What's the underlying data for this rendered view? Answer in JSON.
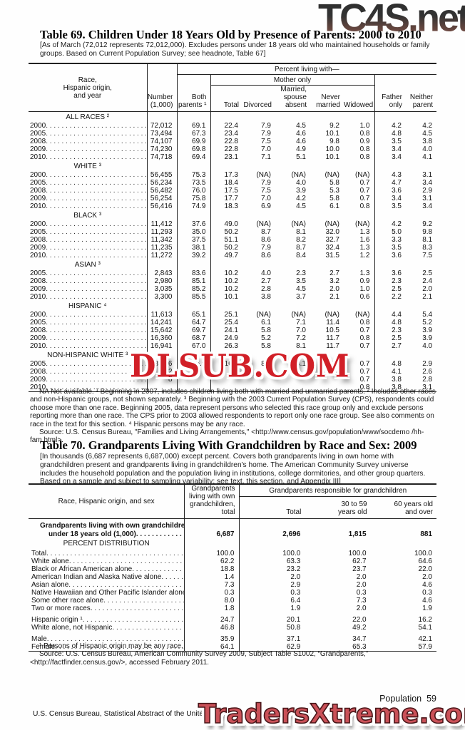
{
  "watermarks": {
    "top": "TC4S.net",
    "middle": "DLSUB.COM",
    "bottom": "TradersXtreme.com"
  },
  "table69": {
    "title": "Table 69. Children Under 18 Years Old by Presence of Parents: 2000 to 2010",
    "headnote": "[As of March (72,012 represents 72,012,000). Excludes persons under 18 years old who maintained households or family groups. Based on Current Population Survey; see headnote, Table 67]",
    "header": {
      "stub": "Race,\nHispanic origin,\nand year",
      "number": "Number\n(1,000)",
      "percent_living_with": "Percent living with—",
      "both_parents": "Both\nparents ¹",
      "mother_only": "Mother only",
      "mother_cols": [
        "Total",
        "Divorced",
        "Married,\nspouse\nabsent",
        "Never\nmarried",
        "Widowed"
      ],
      "father_only": "Father\nonly",
      "neither_parent": "Neither\nparent"
    },
    "sections": [
      {
        "label": "ALL RACES ²",
        "rows": [
          {
            "label": "2000",
            "values": [
              "72,012",
              "69.1",
              "22.4",
              "7.9",
              "4.5",
              "9.2",
              "1.0",
              "4.2",
              "4.2"
            ]
          },
          {
            "label": "2005",
            "values": [
              "73,494",
              "67.3",
              "23.4",
              "7.9",
              "4.6",
              "10.1",
              "0.8",
              "4.8",
              "4.5"
            ]
          },
          {
            "label": "2008",
            "values": [
              "74,107",
              "69.9",
              "22.8",
              "7.5",
              "4.6",
              "9.8",
              "0.9",
              "3.5",
              "3.8"
            ]
          },
          {
            "label": "2009",
            "values": [
              "74,230",
              "69.8",
              "22.8",
              "7.0",
              "4.9",
              "10.0",
              "0.8",
              "3.4",
              "4.0"
            ]
          },
          {
            "label": "2010",
            "values": [
              "74,718",
              "69.4",
              "23.1",
              "7.1",
              "5.1",
              "10.1",
              "0.8",
              "3.4",
              "4.1"
            ]
          }
        ]
      },
      {
        "label": "WHITE ³",
        "rows": [
          {
            "label": "2000",
            "values": [
              "56,455",
              "75.3",
              "17.3",
              "(NA)",
              "(NA)",
              "(NA)",
              "(NA)",
              "4.3",
              "3.1"
            ]
          },
          {
            "label": "2005",
            "values": [
              "56,234",
              "73.5",
              "18.4",
              "7.9",
              "4.0",
              "5.8",
              "0.7",
              "4.7",
              "3.4"
            ]
          },
          {
            "label": "2008",
            "values": [
              "56,482",
              "76.0",
              "17.5",
              "7.5",
              "3.9",
              "5.3",
              "0.7",
              "3.6",
              "2.9"
            ]
          },
          {
            "label": "2009",
            "values": [
              "56,254",
              "75.8",
              "17.7",
              "7.0",
              "4.2",
              "5.8",
              "0.7",
              "3.4",
              "3.1"
            ]
          },
          {
            "label": "2010",
            "values": [
              "56,416",
              "74.9",
              "18.3",
              "6.9",
              "4.5",
              "6.1",
              "0.8",
              "3.5",
              "3.4"
            ]
          }
        ]
      },
      {
        "label": "BLACK ³",
        "rows": [
          {
            "label": "2000",
            "values": [
              "11,412",
              "37.6",
              "49.0",
              "(NA)",
              "(NA)",
              "(NA)",
              "(NA)",
              "4.2",
              "9.2"
            ]
          },
          {
            "label": "2005",
            "values": [
              "11,293",
              "35.0",
              "50.2",
              "8.7",
              "8.1",
              "32.0",
              "1.3",
              "5.0",
              "9.8"
            ]
          },
          {
            "label": "2008",
            "values": [
              "11,342",
              "37.5",
              "51.1",
              "8.6",
              "8.2",
              "32.7",
              "1.6",
              "3.3",
              "8.1"
            ]
          },
          {
            "label": "2009",
            "values": [
              "11,235",
              "38.1",
              "50.2",
              "7.9",
              "8.7",
              "32.4",
              "1.3",
              "3.5",
              "8.3"
            ]
          },
          {
            "label": "2010",
            "values": [
              "11,272",
              "39.2",
              "49.7",
              "8.6",
              "8.4",
              "31.5",
              "1.2",
              "3.6",
              "7.5"
            ]
          }
        ]
      },
      {
        "label": "ASIAN ³",
        "rows": [
          {
            "label": "2005",
            "values": [
              "2,843",
              "83.6",
              "10.2",
              "4.0",
              "2.3",
              "2.7",
              "1.3",
              "3.6",
              "2.5"
            ]
          },
          {
            "label": "2008",
            "values": [
              "2,980",
              "85.1",
              "10.2",
              "2.7",
              "3.5",
              "3.2",
              "0.9",
              "2.3",
              "2.4"
            ]
          },
          {
            "label": "2009",
            "values": [
              "3,035",
              "85.2",
              "10.2",
              "2.8",
              "4.5",
              "2.0",
              "1.0",
              "2.5",
              "2.0"
            ]
          },
          {
            "label": "2010",
            "values": [
              "3,300",
              "85.5",
              "10.1",
              "3.8",
              "3.7",
              "2.1",
              "0.6",
              "2.2",
              "2.1"
            ]
          }
        ]
      },
      {
        "label": "HISPANIC ⁴",
        "rows": [
          {
            "label": "2000",
            "values": [
              "11,613",
              "65.1",
              "25.1",
              "(NA)",
              "(NA)",
              "(NA)",
              "(NA)",
              "4.4",
              "5.4"
            ]
          },
          {
            "label": "2005",
            "values": [
              "14,241",
              "64.7",
              "25.4",
              "6.1",
              "7.1",
              "11.4",
              "0.8",
              "4.8",
              "5.2"
            ]
          },
          {
            "label": "2008",
            "values": [
              "15,642",
              "69.7",
              "24.1",
              "5.8",
              "7.0",
              "10.5",
              "0.7",
              "2.3",
              "3.9"
            ]
          },
          {
            "label": "2009",
            "values": [
              "16,360",
              "68.7",
              "24.9",
              "5.2",
              "7.2",
              "11.7",
              "0.8",
              "2.5",
              "3.9"
            ]
          },
          {
            "label": "2010",
            "values": [
              "16,941",
              "67.0",
              "26.3",
              "5.8",
              "8.1",
              "11.7",
              "0.7",
              "2.7",
              "4.0"
            ]
          }
        ]
      },
      {
        "label": "NON-HISPANIC WHITE ³",
        "rows": [
          {
            "label": "2005",
            "values": [
              "43,106",
              "75.9",
              "16.4",
              "8.5",
              "3.1",
              "4.2",
              "0.7",
              "4.8",
              "2.9"
            ]
          },
          {
            "label": "2008",
            "values": [
              "2",
              "",
              "",
              "",
              "",
              "",
              "0.7",
              "4.1",
              "2.6"
            ]
          },
          {
            "label": "2009",
            "values": [
              "8",
              "",
              "",
              "",
              "",
              "",
              "0.7",
              "3.8",
              "2.8"
            ]
          },
          {
            "label": "2010",
            "values": [
              "",
              "",
              "",
              "",
              "",
              "",
              "0.8",
              "3.8",
              "3.1"
            ]
          }
        ]
      }
    ],
    "footnote": "NA Not available. ¹ Beginning in 2007, includes children living both with married and unmarried parents. ² Includes other races and non-Hispanic groups, not shown separately. ³ Beginning with the 2003 Current Population Survey (CPS), respondents could choose more than one race. Beginning 2005, data represent persons who selected this race group only and exclude persons reporting more than one race. The CPS prior to 2003 allowed respondents to report only one race group. See also comments on race in the text for this section. ⁴ Hispanic persons may be any race.",
    "source": "Source: U.S. Census Bureau, \"Families and Living Arrangements,\" <http://www.census.gov/population/www/socdemo /hh-fam.html>."
  },
  "table70": {
    "title": "Table 70. Grandparents Living With Grandchildren by Race and Sex: 2009",
    "headnote": "[In thousands (6,687 represents 6,687,000) except percent. Covers both grandparents living in own home with grandchildren present and grandparents living in grandchildren's home. The American Community Survey universe includes the household population and the population living in institutions, college dormitories, and other group quarters. Based on a sample and subject to sampling variability; see text, this section, and Appendix III]",
    "header": {
      "stub": "Race, Hispanic origin, and sex",
      "total_col": "Grandparents\nliving with own\ngrandchildren, total",
      "group": "Grandparents responsible for grandchildren",
      "cols": [
        "Total",
        "30 to 59\nyears old",
        "60 years old\nand over"
      ]
    },
    "rows": [
      {
        "type": "total",
        "label_lines": [
          "Grandparents living with own grandchildren",
          "under 18 years old (1,000)"
        ],
        "values": [
          "6,687",
          "2,696",
          "1,815",
          "881"
        ]
      },
      {
        "type": "section",
        "label": "PERCENT DISTRIBUTION"
      },
      {
        "type": "data",
        "label": "Total",
        "values": [
          "100.0",
          "100.0",
          "100.0",
          "100.0"
        ]
      },
      {
        "type": "data",
        "label": "White alone",
        "values": [
          "62.2",
          "63.3",
          "62.7",
          "64.6"
        ]
      },
      {
        "type": "data",
        "label": "Black or African American alone",
        "values": [
          "18.8",
          "23.2",
          "23.7",
          "22.0"
        ]
      },
      {
        "type": "data",
        "label": "American Indian and Alaska Native alone",
        "values": [
          "1.4",
          "2.0",
          "2.0",
          "2.0"
        ]
      },
      {
        "type": "data",
        "label": "Asian alone",
        "values": [
          "7.3",
          "2.9",
          "2.0",
          "4.6"
        ]
      },
      {
        "type": "data",
        "label": "Native Hawaiian and Other Pacific Islander alone",
        "values": [
          "0.3",
          "0.3",
          "0.3",
          "0.3"
        ]
      },
      {
        "type": "data",
        "label": "Some other race alone",
        "values": [
          "8.0",
          "6.4",
          "7.3",
          "4.6"
        ]
      },
      {
        "type": "data",
        "label": "Two or more races",
        "values": [
          "1.8",
          "1.9",
          "2.0",
          "1.9"
        ]
      },
      {
        "type": "data",
        "gap": true,
        "label": "Hispanic origin ¹",
        "values": [
          "24.7",
          "20.1",
          "22.0",
          "16.2"
        ]
      },
      {
        "type": "data",
        "label": "White alone, not Hispanic",
        "values": [
          "46.8",
          "50.8",
          "49.2",
          "54.1"
        ]
      },
      {
        "type": "data",
        "gap": true,
        "label": "Male",
        "values": [
          "35.9",
          "37.1",
          "34.7",
          "42.1"
        ]
      },
      {
        "type": "data",
        "label": "Female",
        "values": [
          "64.1",
          "62.9",
          "65.3",
          "57.9"
        ]
      }
    ],
    "footnote": "¹ Persons of Hispanic origin may be any race.",
    "source": "Source: U.S. Census Bureau, American Community Survey 2009, Subject Table S1002, “Grandparents,” <http://factfinder.census.gov/>, accessed February 2011."
  },
  "footer": {
    "page_label": "Population  59",
    "source_line": "U.S. Census Bureau, Statistical Abstract of the United States: 2012"
  }
}
